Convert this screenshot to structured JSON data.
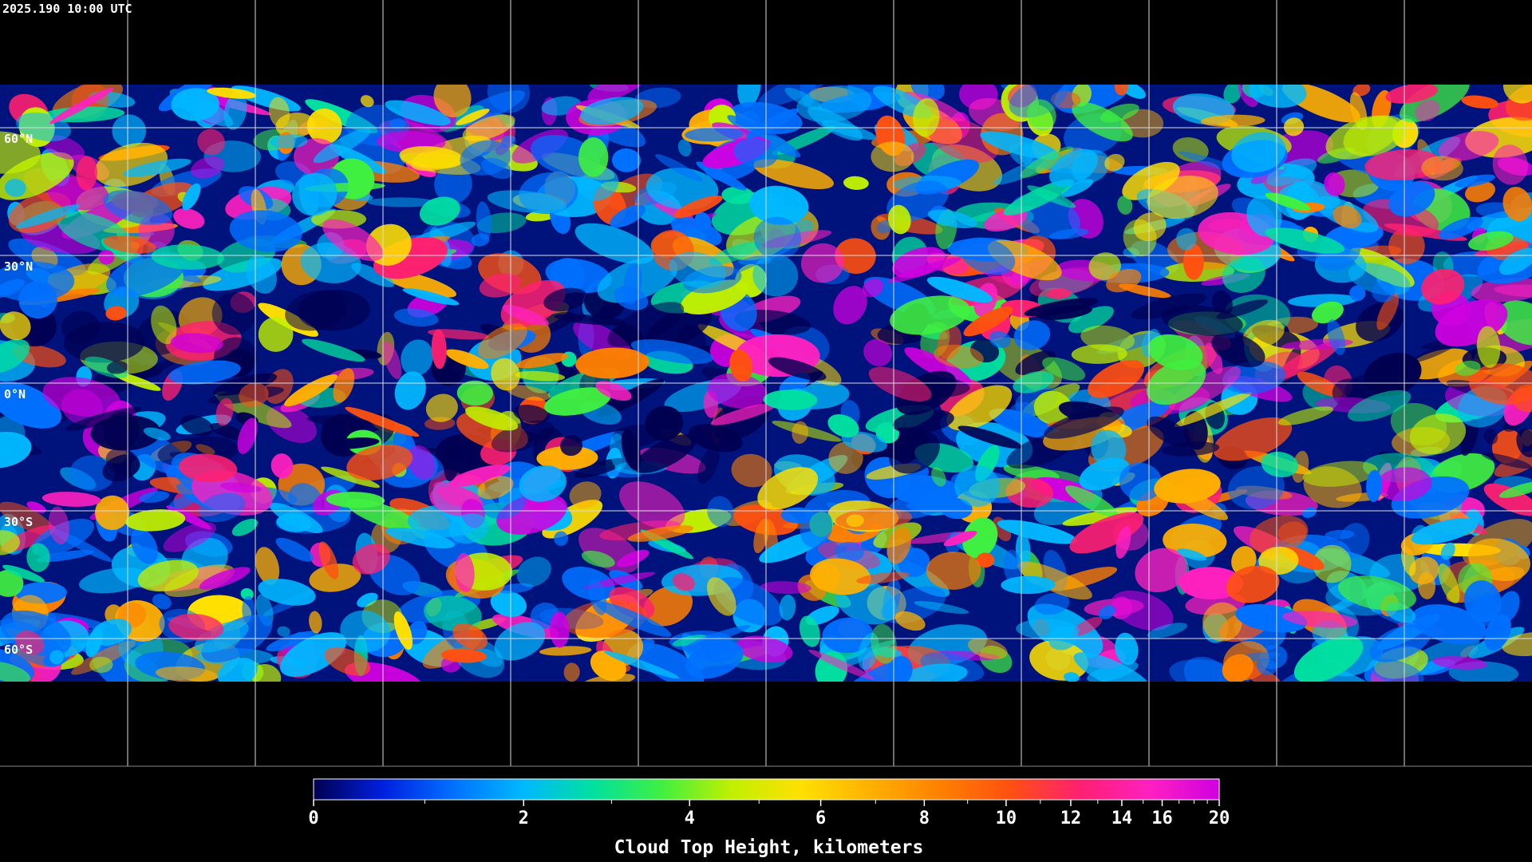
{
  "header": {
    "timestamp": "2025.190 10:00 UTC"
  },
  "map": {
    "lat_ticks": [
      {
        "value": 60,
        "label": "60°N"
      },
      {
        "value": 30,
        "label": "30°N"
      },
      {
        "value": 0,
        "label": "0°N"
      },
      {
        "value": -30,
        "label": "30°S"
      },
      {
        "value": -60,
        "label": "60°S"
      }
    ]
  },
  "colorbar": {
    "title": "Cloud Top Height, kilometers",
    "lim": [
      0,
      20
    ],
    "ticks": [
      0,
      2,
      4,
      6,
      8,
      10,
      12,
      14,
      16,
      20
    ],
    "minor_ticks": [
      1,
      3,
      5,
      7,
      9,
      11,
      13,
      15,
      17,
      18,
      19
    ],
    "colormap": [
      "#000050",
      "#0020e0",
      "#0070ff",
      "#00b8ff",
      "#00e0a0",
      "#40f040",
      "#c0f000",
      "#ffe000",
      "#ffb000",
      "#ff8000",
      "#ff5010",
      "#ff2070",
      "#ff20c0",
      "#d000e0"
    ]
  }
}
